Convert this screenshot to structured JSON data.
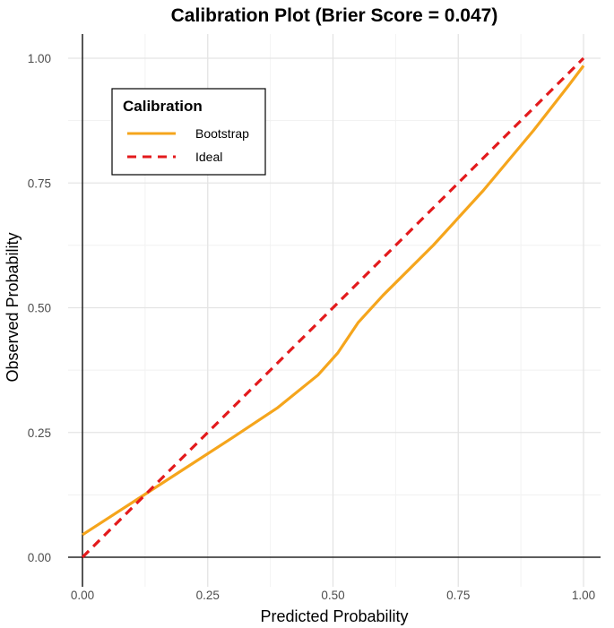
{
  "chart_data": {
    "type": "line",
    "title": "Calibration Plot (Brier Score = 0.047)",
    "xlabel": "Predicted Probability",
    "ylabel": "Observed Probability",
    "xlim": [
      0,
      1
    ],
    "ylim": [
      0,
      1
    ],
    "x_ticks": [
      0,
      0.25,
      0.5,
      0.75,
      1
    ],
    "y_ticks": [
      0,
      0.25,
      0.5,
      0.75,
      1
    ],
    "x_tick_labels": [
      "0.00",
      "0.25",
      "0.50",
      "0.75",
      "1.00"
    ],
    "y_tick_labels": [
      "0.00",
      "0.25",
      "0.50",
      "0.75",
      "1.00"
    ],
    "grid": true,
    "legend": {
      "title": "Calibration",
      "position": "top-left"
    },
    "series": [
      {
        "name": "Bootstrap",
        "color": "#f5a51c",
        "style": "solid",
        "x": [
          0,
          0.1,
          0.2,
          0.3,
          0.39,
          0.47,
          0.51,
          0.55,
          0.6,
          0.7,
          0.8,
          0.9,
          0.97,
          1.0
        ],
        "y": [
          0.045,
          0.11,
          0.175,
          0.24,
          0.3,
          0.365,
          0.41,
          0.47,
          0.525,
          0.625,
          0.735,
          0.855,
          0.945,
          0.985
        ]
      },
      {
        "name": "Ideal",
        "color": "#e31a1c",
        "style": "dashed",
        "x": [
          0,
          1
        ],
        "y": [
          0,
          1
        ]
      }
    ]
  }
}
